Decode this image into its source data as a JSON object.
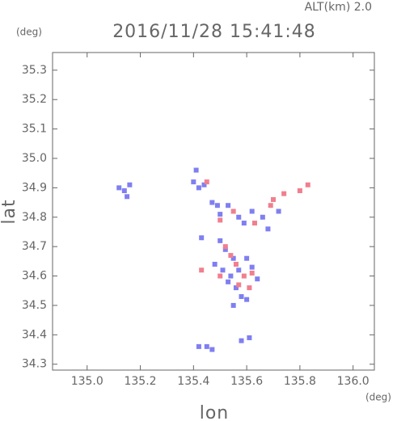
{
  "chart_data": {
    "type": "scatter",
    "title": "2016/11/28 15:41:48",
    "subtitle": "ALT(km) 2.0",
    "x_label": "lon",
    "y_label": "lat",
    "x_unit": "(deg)",
    "y_unit": "(deg)",
    "xlim": [
      134.87,
      136.08
    ],
    "ylim": [
      34.28,
      35.36
    ],
    "xticks": [
      {
        "value": 135,
        "label": "135.0"
      },
      135.2,
      135.4,
      135.6,
      135.8,
      {
        "value": 136,
        "label": "136.0"
      }
    ],
    "yticks": [
      34.3,
      34.4,
      34.5,
      34.6,
      34.7,
      34.8,
      34.9,
      {
        "value": 35,
        "label": "35.0"
      },
      35.1,
      35.2,
      35.3
    ],
    "series": [
      {
        "color": "#7f7ff2",
        "x": [
          135.12,
          135.14,
          135.16,
          135.15,
          135.4,
          135.42,
          135.44,
          135.41,
          135.47,
          135.49,
          135.5,
          135.53,
          135.57,
          135.59,
          135.62,
          135.66,
          135.68,
          135.72,
          135.43,
          135.5,
          135.52,
          135.55,
          135.48,
          135.51,
          135.54,
          135.57,
          135.6,
          135.62,
          135.56,
          135.58,
          135.55,
          135.6,
          135.53,
          135.64,
          135.45,
          135.47,
          135.42,
          135.58,
          135.61
        ],
        "values": [
          34.9,
          34.89,
          34.91,
          34.87,
          34.92,
          34.9,
          34.91,
          34.96,
          34.85,
          34.84,
          34.81,
          34.84,
          34.8,
          34.78,
          34.82,
          34.8,
          34.76,
          34.82,
          34.73,
          34.72,
          34.69,
          34.66,
          34.64,
          34.62,
          34.6,
          34.62,
          34.66,
          34.63,
          34.56,
          34.53,
          34.5,
          34.52,
          34.58,
          34.59,
          34.36,
          34.35,
          34.36,
          34.38,
          34.39
        ]
      },
      {
        "color": "#f07f8f",
        "x": [
          135.45,
          135.5,
          135.55,
          135.63,
          135.69,
          135.74,
          135.8,
          135.83,
          135.7,
          135.52,
          135.56,
          135.59,
          135.62,
          135.5,
          135.57,
          135.61,
          135.43,
          135.54
        ],
        "values": [
          34.92,
          34.79,
          34.82,
          34.78,
          34.84,
          34.88,
          34.89,
          34.91,
          34.86,
          34.7,
          34.64,
          34.6,
          34.61,
          34.6,
          34.57,
          34.56,
          34.62,
          34.67
        ]
      }
    ]
  }
}
